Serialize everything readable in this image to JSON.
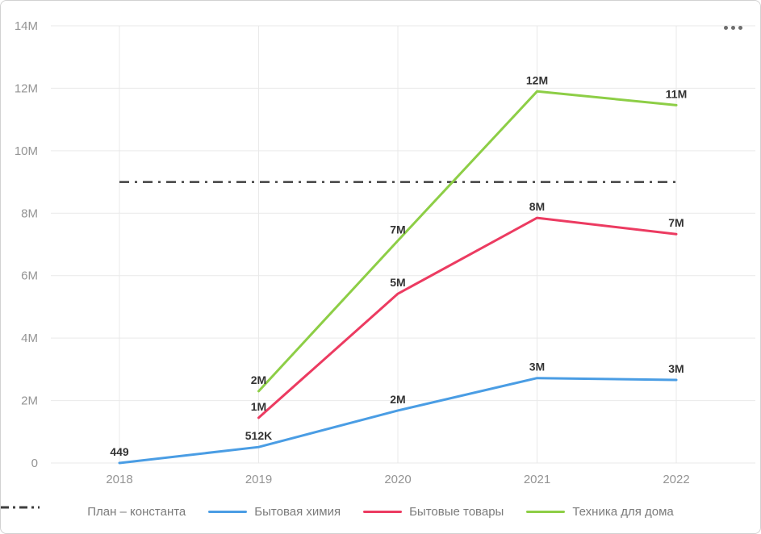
{
  "header": {
    "more_options_icon": "ellipsis-horizontal"
  },
  "chart_data": {
    "type": "line",
    "title": "",
    "categories": [
      "2018",
      "2019",
      "2020",
      "2021",
      "2022"
    ],
    "y_axis": {
      "tick_labels": [
        "0",
        "2M",
        "4M",
        "6M",
        "8M",
        "10M",
        "12M",
        "14M"
      ],
      "tick_values": [
        0,
        2000000,
        4000000,
        6000000,
        8000000,
        10000000,
        12000000,
        14000000
      ],
      "min": 0,
      "max": 14000000,
      "grid": true
    },
    "x_axis": {
      "grid": true
    },
    "plan_line": {
      "label": "План – константа",
      "value": 9000000,
      "display": "9M",
      "color": "#3f3f3f",
      "style": "dash-dot"
    },
    "series": [
      {
        "name": "Бытовая химия",
        "color": "#4a9de4",
        "values": [
          449,
          512000,
          1680000,
          2720000,
          2660000
        ],
        "point_labels": [
          "449",
          "512K",
          "2M",
          "3M",
          "3M"
        ]
      },
      {
        "name": "Бытовые товары",
        "color": "#ec3b61",
        "values": [
          null,
          1450000,
          5420000,
          7850000,
          7330000
        ],
        "point_labels": [
          "",
          "1M",
          "5M",
          "8M",
          "7M"
        ]
      },
      {
        "name": "Техника для дома",
        "color": "#8dce46",
        "values": [
          null,
          2300000,
          7120000,
          11900000,
          11460000
        ],
        "point_labels": [
          "",
          "2M",
          "7M",
          "12M",
          "11M"
        ]
      }
    ],
    "legend_position": "bottom"
  }
}
